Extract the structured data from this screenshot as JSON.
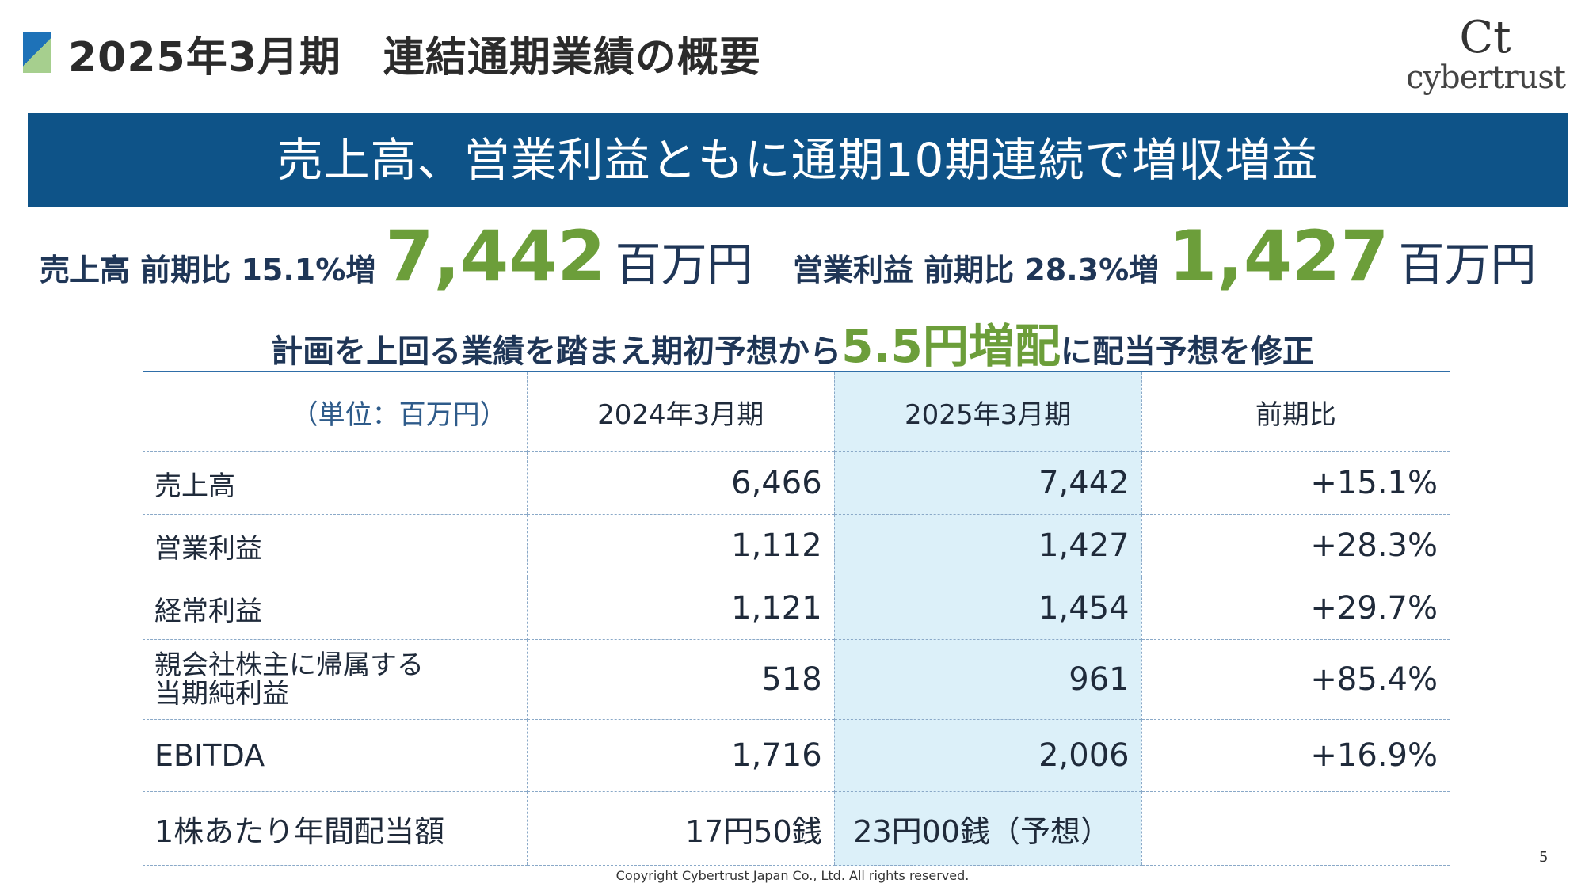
{
  "header": {
    "title": "2025年3月期　連結通期業績の概要",
    "logo_text": "cybertrust",
    "logo_mark": "Ct"
  },
  "banner": {
    "text": "売上高、営業利益ともに通期10期連続で増収増益"
  },
  "kpi": {
    "sales_label": "売上高 前期比 15.1%増",
    "sales_value": "7,442",
    "sales_unit": "百万円",
    "op_label": "営業利益 前期比 28.3%増",
    "op_value": "1,427",
    "op_unit": "百万円"
  },
  "dividend": {
    "pre": "計画を上回る業績を踏まえ期初予想から",
    "highlight": "5.5円増配",
    "post": "に配当予想を修正"
  },
  "table": {
    "unit": "（単位：百万円）",
    "headers": [
      "2024年3月期",
      "2025年3月期",
      "前期比"
    ],
    "rows": [
      {
        "label": "売上高",
        "fy2024": "6,466",
        "fy2025": "7,442",
        "change": "+15.1%"
      },
      {
        "label": "営業利益",
        "fy2024": "1,112",
        "fy2025": "1,427",
        "change": "+28.3%"
      },
      {
        "label": "経常利益",
        "fy2024": "1,121",
        "fy2025": "1,454",
        "change": "+29.7%"
      },
      {
        "label": "親会社株主に帰属する\n当期純利益",
        "fy2024": "518",
        "fy2025": "961",
        "change": "+85.4%"
      },
      {
        "label": "EBITDA",
        "fy2024": "1,716",
        "fy2025": "2,006",
        "change": "+16.9%"
      },
      {
        "label": "1株あたり年間配当額",
        "fy2024": "17円50銭",
        "fy2025": "23円00銭（予想）",
        "change": ""
      }
    ]
  },
  "footer": {
    "copyright": "Copyright Cybertrust Japan Co., Ltd. All rights reserved.",
    "page": "5"
  },
  "colors": {
    "banner": "#0e5388",
    "accent_green": "#6c9e3a",
    "highlight_col": "#dcf0f9"
  }
}
